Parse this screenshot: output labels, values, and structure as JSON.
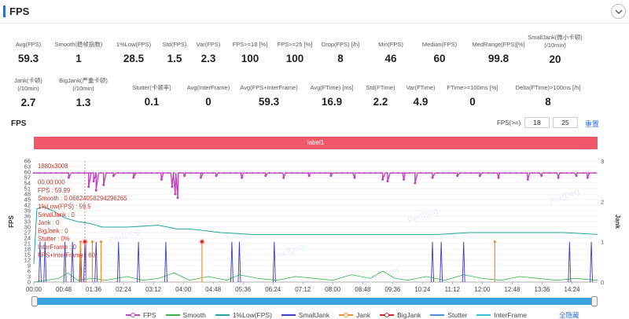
{
  "header": {
    "title": "FPS"
  },
  "stats_row1": [
    {
      "label": "Avg(FPS)",
      "value": "59.3"
    },
    {
      "label": "Smooth(稳帧指数)",
      "value": "1"
    },
    {
      "label": "1%Low(FPS)",
      "value": "28.5"
    },
    {
      "label": "Std(FPS)",
      "value": "1.5"
    },
    {
      "label": "Var(FPS)",
      "value": "2.3"
    },
    {
      "label": "FPS>=18 [%]",
      "value": "100"
    },
    {
      "label": "FPS>=25 [%]",
      "value": "100"
    },
    {
      "label": "Drop(FPS) [/h]",
      "value": "8"
    },
    {
      "label": "Min(FPS)",
      "value": "46"
    },
    {
      "label": "Median(FPS)",
      "value": "60"
    },
    {
      "label": "MedRange(FPS)[%]",
      "value": "99.8"
    },
    {
      "label": "SmallJank(微小卡顿)",
      "label2": "(/10min)",
      "value": "20"
    }
  ],
  "stats_row2": [
    {
      "label": "Jank(卡顿)",
      "label2": "(/10min)",
      "value": "2.7"
    },
    {
      "label": "BigJank(严重卡顿)",
      "label2": "(/10min)",
      "value": "1.3"
    },
    {
      "label": "Stutter(卡顿率)",
      "value": "0.1"
    },
    {
      "label": "Avg(InterFrame)",
      "value": "0"
    },
    {
      "label": "Avg(FPS+InterFrame)",
      "value": "59.3"
    },
    {
      "label": "Avg(FTime) [ms]",
      "value": "16.9"
    },
    {
      "label": "Std(FTime)",
      "value": "2.2"
    },
    {
      "label": "Var(FTime)",
      "value": "4.9"
    },
    {
      "label": "FTime>=100ms [%]",
      "value": "0"
    },
    {
      "label": "Delta(FTime)>100ms [/h]",
      "value": "8"
    }
  ],
  "chart_header": {
    "title": "FPS",
    "threshold_label": "FPS(>=)",
    "threshold_low": "18",
    "threshold_high": "25",
    "reset_label": "重置"
  },
  "label_band": "label1",
  "tooltip": [
    "1880x3008",
    "",
    "00:00:000",
    "FPS             : 59.99",
    "Smooth          : 0.06824058294296265",
    "1%Low(FPS)      : 59.5",
    "SmallJank       : 0",
    "Jank            : 0",
    "BigJank         : 0",
    "Stutter         : 0%",
    "InterFrame      : 0",
    "FPS+InterFrame  : 60"
  ],
  "chart_data": {
    "type": "line",
    "title": "",
    "xlabel": "",
    "ylabel": "FPS",
    "y2label": "Jank",
    "x_ticks": [
      "00:00",
      "00:48",
      "01:36",
      "02:24",
      "03:12",
      "04:00",
      "04:48",
      "05:36",
      "06:24",
      "07:12",
      "08:00",
      "08:48",
      "09:36",
      "10:24",
      "11:12",
      "12:00",
      "12:48",
      "13:36",
      "14:24"
    ],
    "y_ticks": [
      0,
      3,
      6,
      9,
      12,
      15,
      18,
      21,
      24,
      27,
      30,
      33,
      36,
      39,
      42,
      45,
      48,
      51,
      54,
      57,
      60,
      63,
      66
    ],
    "ylim": [
      0,
      66
    ],
    "y2_ticks": [
      0,
      1,
      2,
      3
    ],
    "y2lim": [
      0,
      3
    ],
    "duration_sec": 905,
    "series": [
      {
        "name": "FPS",
        "color": "#c044c0",
        "axis": "left",
        "baseline": 59.5,
        "dips": [
          [
            56,
            57
          ],
          [
            88,
            52
          ],
          [
            96,
            55
          ],
          [
            100,
            50
          ],
          [
            112,
            53
          ],
          [
            128,
            58
          ],
          [
            160,
            57
          ],
          [
            205,
            56
          ],
          [
            222,
            52
          ],
          [
            227,
            48
          ],
          [
            231,
            46
          ],
          [
            242,
            58
          ],
          [
            268,
            57
          ],
          [
            293,
            58
          ],
          [
            334,
            57
          ],
          [
            372,
            58
          ],
          [
            401,
            57
          ],
          [
            442,
            58
          ],
          [
            477,
            58
          ],
          [
            515,
            57
          ],
          [
            560,
            56
          ],
          [
            568,
            55
          ],
          [
            594,
            56
          ],
          [
            612,
            54
          ],
          [
            640,
            57
          ],
          [
            680,
            58
          ],
          [
            716,
            58
          ],
          [
            746,
            57
          ],
          [
            793,
            56
          ],
          [
            815,
            58
          ],
          [
            842,
            57
          ],
          [
            871,
            58
          ],
          [
            889,
            57
          ]
        ]
      },
      {
        "name": "Smooth",
        "color": "#3cb44b",
        "axis": "left",
        "points": [
          [
            0,
            0
          ],
          [
            20,
            1
          ],
          [
            40,
            2
          ],
          [
            55,
            5
          ],
          [
            70,
            1
          ],
          [
            95,
            2
          ],
          [
            115,
            1
          ],
          [
            150,
            3
          ],
          [
            175,
            1
          ],
          [
            200,
            2
          ],
          [
            225,
            5
          ],
          [
            250,
            1
          ],
          [
            280,
            3
          ],
          [
            310,
            1
          ],
          [
            330,
            4
          ],
          [
            360,
            2
          ],
          [
            390,
            1
          ],
          [
            420,
            3
          ],
          [
            450,
            2
          ],
          [
            480,
            1
          ],
          [
            510,
            4
          ],
          [
            540,
            2
          ],
          [
            560,
            6
          ],
          [
            580,
            2
          ],
          [
            600,
            1
          ],
          [
            630,
            3
          ],
          [
            660,
            1
          ],
          [
            690,
            4
          ],
          [
            720,
            2
          ],
          [
            750,
            1
          ],
          [
            780,
            3
          ],
          [
            810,
            2
          ],
          [
            840,
            1
          ],
          [
            870,
            2
          ],
          [
            905,
            1
          ]
        ]
      },
      {
        "name": "1%Low(FPS)",
        "color": "#20a79a",
        "axis": "left",
        "points": [
          [
            0,
            10
          ],
          [
            5,
            40
          ],
          [
            15,
            41
          ],
          [
            30,
            39
          ],
          [
            50,
            35
          ],
          [
            70,
            33
          ],
          [
            90,
            32
          ],
          [
            110,
            30
          ],
          [
            150,
            30
          ],
          [
            200,
            31
          ],
          [
            230,
            29
          ],
          [
            250,
            29
          ],
          [
            300,
            27
          ],
          [
            350,
            26
          ],
          [
            400,
            26
          ],
          [
            450,
            26
          ],
          [
            500,
            26
          ],
          [
            550,
            26
          ],
          [
            600,
            26
          ],
          [
            650,
            26
          ],
          [
            700,
            27
          ],
          [
            750,
            27
          ],
          [
            800,
            27
          ],
          [
            850,
            27
          ],
          [
            905,
            26
          ]
        ]
      },
      {
        "name": "SmallJank",
        "color": "#3b3bcc",
        "axis": "right",
        "spikes": [
          10,
          18,
          50,
          62,
          75,
          82,
          100,
          136,
          168,
          212,
          318,
          330,
          386,
          640,
          654,
          690,
          860,
          895
        ]
      },
      {
        "name": "Jank",
        "color": "#f28e2b",
        "axis": "right",
        "spikes": [
          75,
          84,
          94,
          108,
          270,
          740
        ]
      },
      {
        "name": "BigJank",
        "color": "#d62728",
        "axis": "right",
        "spikes": [
          82,
          270
        ]
      },
      {
        "name": "Stutter",
        "color": "#4a90d9",
        "axis": "right",
        "spikes": []
      },
      {
        "name": "InterFrame",
        "color": "#35c1d8",
        "axis": "right",
        "spikes": []
      }
    ]
  },
  "legend": {
    "items": [
      {
        "name": "FPS",
        "color": "#c044c0",
        "marker": true
      },
      {
        "name": "Smooth",
        "color": "#3cb44b",
        "marker": false
      },
      {
        "name": "1%Low(FPS)",
        "color": "#20a79a",
        "marker": false
      },
      {
        "name": "SmallJank",
        "color": "#3b3bcc",
        "marker": false
      },
      {
        "name": "Jank",
        "color": "#f28e2b",
        "marker": true
      },
      {
        "name": "BigJank",
        "color": "#d62728",
        "marker": true
      },
      {
        "name": "Stutter",
        "color": "#4a90d9",
        "marker": false
      },
      {
        "name": "InterFrame",
        "color": "#35c1d8",
        "marker": false
      }
    ],
    "hide_all": "全隐藏"
  },
  "watermark": "PerfDog"
}
